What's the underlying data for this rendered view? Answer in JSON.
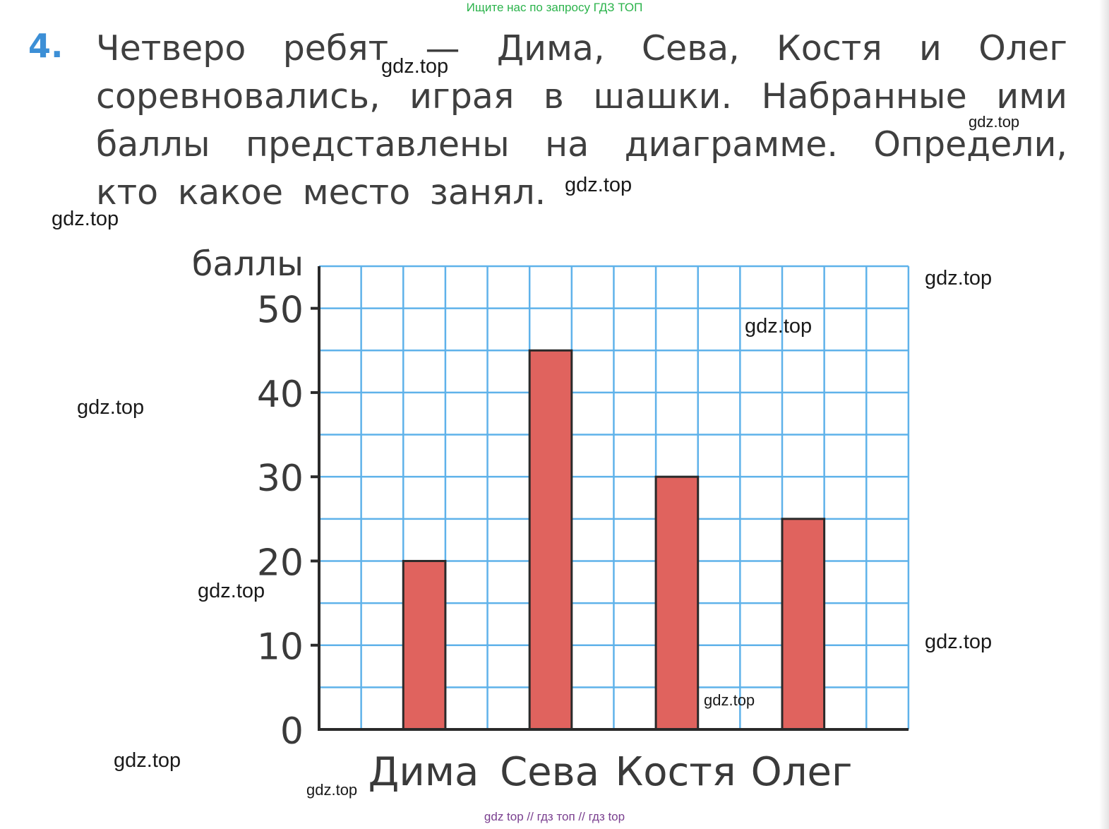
{
  "banner": "Ищите нас по запросу ГДЗ ТОП",
  "task": {
    "number": "4.",
    "lines": [
      "Четверо ребят — Дима, Сева, Костя и Олег",
      "соревновались, играя в шашки. Набранные ими",
      "баллы представлены на диаграмме. Определи,",
      "кто какое место занял."
    ]
  },
  "watermark": "gdz.top",
  "footer": "gdz top  //  гдз топ  //  гдз top",
  "colors": {
    "bar_fill": "#e0635e",
    "bar_stroke": "#2a2a2a",
    "grid": "#5fb2ea",
    "axis": "#2a2a2a",
    "number_accent": "#3c8fd6"
  },
  "chart_data": {
    "type": "bar",
    "ylabel": "баллы",
    "categories": [
      "Дима",
      "Сева",
      "Костя",
      "Олег"
    ],
    "values": [
      20,
      45,
      30,
      25
    ],
    "ylim": [
      0,
      55
    ],
    "yticks": [
      0,
      10,
      20,
      30,
      40,
      50
    ],
    "grid_step": 5,
    "grid": true
  }
}
